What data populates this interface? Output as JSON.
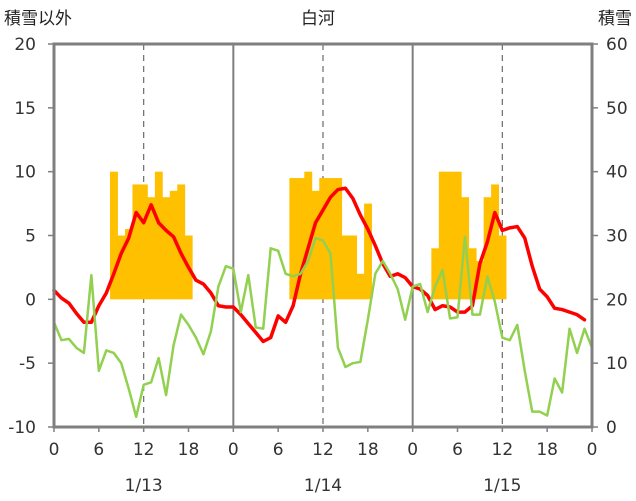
{
  "chart_data": {
    "type": "bar",
    "title": "白河",
    "ylabel_left": "積雪以外",
    "ylabel_right": "積雪",
    "yticks_left": [
      "20",
      "15",
      "10",
      "5",
      "0",
      "-5",
      "-10"
    ],
    "yticks_right": [
      "60",
      "50",
      "40",
      "30",
      "20",
      "10",
      "0"
    ],
    "ylim_left": [
      -10,
      20
    ],
    "ylim_right": [
      0,
      60
    ],
    "xticks": [
      "0",
      "6",
      "12",
      "18",
      "0",
      "6",
      "12",
      "18",
      "0",
      "6",
      "12",
      "18",
      "0"
    ],
    "dates": [
      "1/13",
      "1/14",
      "1/15"
    ],
    "hours_total": 72,
    "grid": "vertical-day-solid-and-12h-dashed",
    "series": [
      {
        "name": "",
        "kind": "bar",
        "axis": "right",
        "color": "#ffc000",
        "points": [
          [
            8,
            40
          ],
          [
            9,
            30
          ],
          [
            10,
            31
          ],
          [
            11,
            38
          ],
          [
            12,
            38
          ],
          [
            13,
            36
          ],
          [
            14,
            40
          ],
          [
            15,
            36
          ],
          [
            16,
            37
          ],
          [
            17,
            38
          ],
          [
            18,
            30
          ],
          [
            32,
            39
          ],
          [
            33,
            39
          ],
          [
            34,
            40
          ],
          [
            35,
            37
          ],
          [
            36,
            39
          ],
          [
            37,
            39
          ],
          [
            38,
            39
          ],
          [
            39,
            30
          ],
          [
            40,
            30
          ],
          [
            41,
            24
          ],
          [
            42,
            35
          ],
          [
            51,
            28
          ],
          [
            52,
            40
          ],
          [
            53,
            40
          ],
          [
            54,
            40
          ],
          [
            55,
            36
          ],
          [
            56,
            28
          ],
          [
            57,
            26
          ],
          [
            58,
            36
          ],
          [
            59,
            38
          ],
          [
            60,
            30
          ]
        ]
      },
      {
        "name": "",
        "kind": "line",
        "axis": "left",
        "color": "#ff0000",
        "points": [
          [
            0,
            0.7
          ],
          [
            1,
            0.1
          ],
          [
            2,
            -0.3
          ],
          [
            3,
            -1.1
          ],
          [
            4,
            -1.8
          ],
          [
            5,
            -1.8
          ],
          [
            6,
            -0.5
          ],
          [
            7,
            0.5
          ],
          [
            8,
            2
          ],
          [
            9,
            3.6
          ],
          [
            10,
            4.8
          ],
          [
            11,
            6.8
          ],
          [
            12,
            6.0
          ],
          [
            13,
            7.4
          ],
          [
            14,
            6.0
          ],
          [
            15,
            5.4
          ],
          [
            16,
            4.9
          ],
          [
            17,
            3.6
          ],
          [
            18,
            2.5
          ],
          [
            19,
            1.5
          ],
          [
            20,
            1.2
          ],
          [
            21,
            0.5
          ],
          [
            22,
            -0.5
          ],
          [
            23,
            -0.6
          ],
          [
            24,
            -0.6
          ],
          [
            25,
            -1.2
          ],
          [
            26,
            -1.9
          ],
          [
            27,
            -2.6
          ],
          [
            28,
            -3.3
          ],
          [
            29,
            -3.0
          ],
          [
            30,
            -1.3
          ],
          [
            31,
            -1.8
          ],
          [
            32,
            -0.5
          ],
          [
            33,
            2
          ],
          [
            34,
            4
          ],
          [
            35,
            6
          ],
          [
            36,
            7
          ],
          [
            37,
            8
          ],
          [
            38,
            8.6
          ],
          [
            39,
            8.7
          ],
          [
            40,
            7.9
          ],
          [
            41,
            6.6
          ],
          [
            42,
            5.5
          ],
          [
            43,
            4.2
          ],
          [
            44,
            2.8
          ],
          [
            45,
            1.8
          ],
          [
            46,
            2.0
          ],
          [
            47,
            1.7
          ],
          [
            48,
            1.0
          ],
          [
            49,
            0.8
          ],
          [
            50,
            0.3
          ],
          [
            51,
            -0.8
          ],
          [
            52,
            -0.5
          ],
          [
            53,
            -0.6
          ],
          [
            54,
            -1
          ],
          [
            55,
            -1
          ],
          [
            56,
            -0.5
          ],
          [
            57,
            2.8
          ],
          [
            58,
            4.5
          ],
          [
            59,
            6.8
          ],
          [
            60,
            5.4
          ],
          [
            61,
            5.6
          ],
          [
            62,
            5.7
          ],
          [
            63,
            4.8
          ],
          [
            64,
            2.6
          ],
          [
            65,
            0.8
          ],
          [
            66,
            0.2
          ],
          [
            67,
            -0.7
          ],
          [
            68,
            -0.8
          ],
          [
            69,
            -1
          ],
          [
            70,
            -1.2
          ],
          [
            71,
            -1.6
          ]
        ]
      },
      {
        "name": "",
        "kind": "line",
        "axis": "left",
        "color": "#92d050",
        "points": [
          [
            0,
            -1.8
          ],
          [
            1,
            -3.2
          ],
          [
            2,
            -3.1
          ],
          [
            3,
            -3.8
          ],
          [
            4,
            -4.2
          ],
          [
            5,
            1.9
          ],
          [
            6,
            -5.6
          ],
          [
            7,
            -4
          ],
          [
            8,
            -4.2
          ],
          [
            9,
            -5
          ],
          [
            10,
            -7
          ],
          [
            11,
            -9.2
          ],
          [
            12,
            -6.7
          ],
          [
            13,
            -6.5
          ],
          [
            14,
            -4.6
          ],
          [
            15,
            -7.5
          ],
          [
            16,
            -3.6
          ],
          [
            17,
            -1.2
          ],
          [
            18,
            -2
          ],
          [
            19,
            -3
          ],
          [
            20,
            -4.3
          ],
          [
            21,
            -2.5
          ],
          [
            22,
            1
          ],
          [
            23,
            2.6
          ],
          [
            24,
            2.4
          ],
          [
            25,
            -1
          ],
          [
            26,
            1.9
          ],
          [
            27,
            -2.2
          ],
          [
            28,
            -2.3
          ],
          [
            29,
            4
          ],
          [
            30,
            3.8
          ],
          [
            31,
            2
          ],
          [
            32,
            1.8
          ],
          [
            33,
            2
          ],
          [
            34,
            3
          ],
          [
            35,
            4.8
          ],
          [
            36,
            4.6
          ],
          [
            37,
            3.6
          ],
          [
            38,
            -3.8
          ],
          [
            39,
            -5.3
          ],
          [
            40,
            -5
          ],
          [
            41,
            -4.9
          ],
          [
            42,
            -1.6
          ],
          [
            43,
            2
          ],
          [
            44,
            3
          ],
          [
            45,
            2
          ],
          [
            46,
            0.8
          ],
          [
            47,
            -1.6
          ],
          [
            48,
            1
          ],
          [
            49,
            1.2
          ],
          [
            50,
            -1
          ],
          [
            51,
            1
          ],
          [
            52,
            2.3
          ],
          [
            53,
            -1.5
          ],
          [
            54,
            -1.4
          ],
          [
            55,
            4.9
          ],
          [
            56,
            -1.2
          ],
          [
            57,
            -1.2
          ],
          [
            58,
            1.8
          ],
          [
            59,
            -0.2
          ],
          [
            60,
            -3.0
          ],
          [
            61,
            -3.2
          ],
          [
            62,
            -2
          ],
          [
            63,
            -5.6
          ],
          [
            64,
            -8.8
          ],
          [
            65,
            -8.8
          ],
          [
            66,
            -9.1
          ],
          [
            67,
            -6.2
          ],
          [
            68,
            -7.3
          ],
          [
            69,
            -2.3
          ],
          [
            70,
            -4.2
          ],
          [
            71,
            -2.3
          ],
          [
            72,
            -3.8
          ]
        ]
      },
      {
        "name": "",
        "kind": "line",
        "axis": "left",
        "color": "#7030a0",
        "points": [
          [
            0,
            -10
          ],
          [
            72,
            -10
          ]
        ]
      }
    ]
  }
}
